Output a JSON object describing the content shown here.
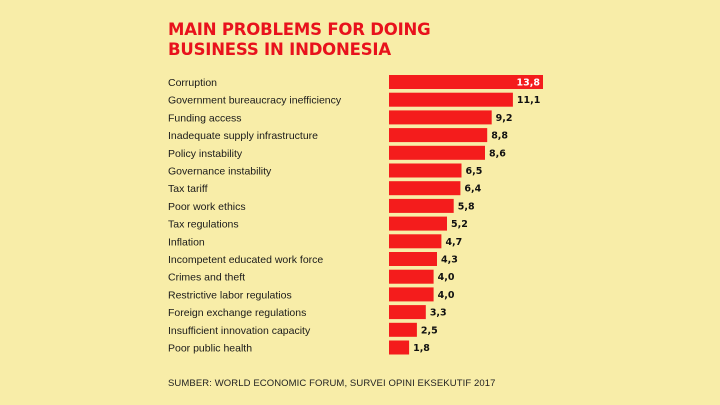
{
  "title_line1": "MAIN PROBLEMS FOR DOING",
  "title_line2": "BUSINESS IN INDONESIA",
  "source": "SUMBER: WORLD ECONOMIC FORUM, SURVEI OPINI EKSEKUTIF 2017",
  "colors": {
    "bar": "#f41c1c",
    "title": "#e8121c",
    "background": "#f8eda8"
  },
  "chart_data": {
    "type": "bar",
    "orientation": "horizontal",
    "title": "MAIN PROBLEMS FOR DOING BUSINESS IN INDONESIA",
    "categories": [
      "Corruption",
      "Government bureaucracy inefficiency",
      "Funding access",
      "Inadequate supply infrastructure",
      "Policy instability",
      "Governance instability",
      "Tax tariff",
      "Poor work ethics",
      "Tax regulations",
      "Inflation",
      "Incompetent educated work force",
      "Crimes and theft",
      "Restrictive labor regulatios",
      "Foreign exchange regulations",
      "Insufficient innovation capacity",
      "Poor public health"
    ],
    "values": [
      13.8,
      11.1,
      9.2,
      8.8,
      8.6,
      6.5,
      6.4,
      5.8,
      5.2,
      4.7,
      4.3,
      4.0,
      4.0,
      3.3,
      2.5,
      1.8
    ],
    "value_labels": [
      "13,8",
      "11,1",
      "9,2",
      "8,8",
      "8,6",
      "6,5",
      "6,4",
      "5,8",
      "5,2",
      "4,7",
      "4,3",
      "4,0",
      "4,0",
      "3,3",
      "2,5",
      "1,8"
    ],
    "xlabel": "",
    "ylabel": "",
    "grid": false,
    "legend": "none"
  }
}
